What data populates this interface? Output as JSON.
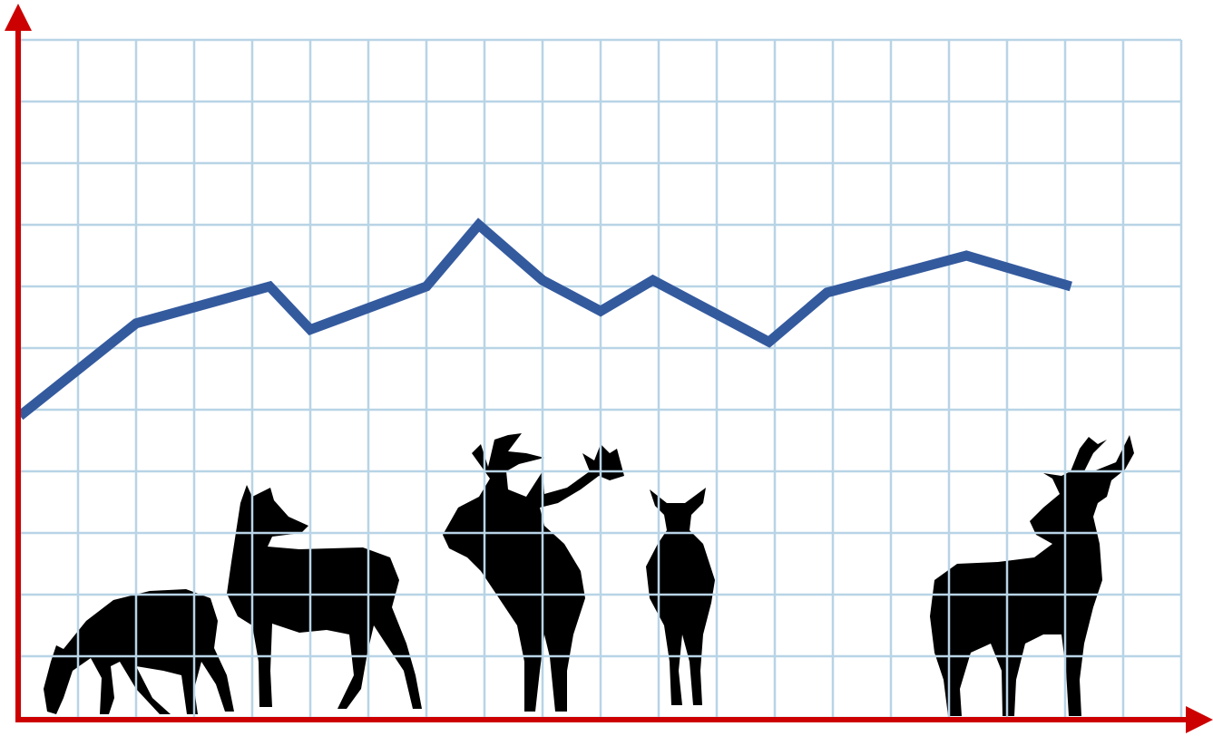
{
  "chart_data": {
    "type": "line",
    "x": [
      0,
      2.0,
      4.3,
      5.0,
      7.0,
      7.9,
      9.0,
      10.0,
      10.9,
      12.9,
      13.9,
      16.3,
      18.1
    ],
    "series": [
      {
        "color": "#345a9e",
        "values": [
          4.9,
          6.4,
          7.0,
          6.3,
          7.0,
          8.0,
          7.1,
          6.6,
          7.1,
          6.1,
          6.9,
          7.5,
          7.0
        ]
      }
    ],
    "xlim": [
      0,
      20
    ],
    "ylim": [
      0,
      11
    ],
    "xticks": [
      0,
      1,
      2,
      3,
      4,
      5,
      6,
      7,
      8,
      9,
      10,
      11,
      12,
      13,
      14,
      15,
      16,
      17,
      18,
      19,
      20
    ],
    "yticks": [
      0,
      1,
      2,
      3,
      4,
      5,
      6,
      7,
      8,
      9,
      10,
      11
    ],
    "grid": true,
    "grid_color": "#b8d4e6",
    "axis_color": "#cc0000"
  }
}
